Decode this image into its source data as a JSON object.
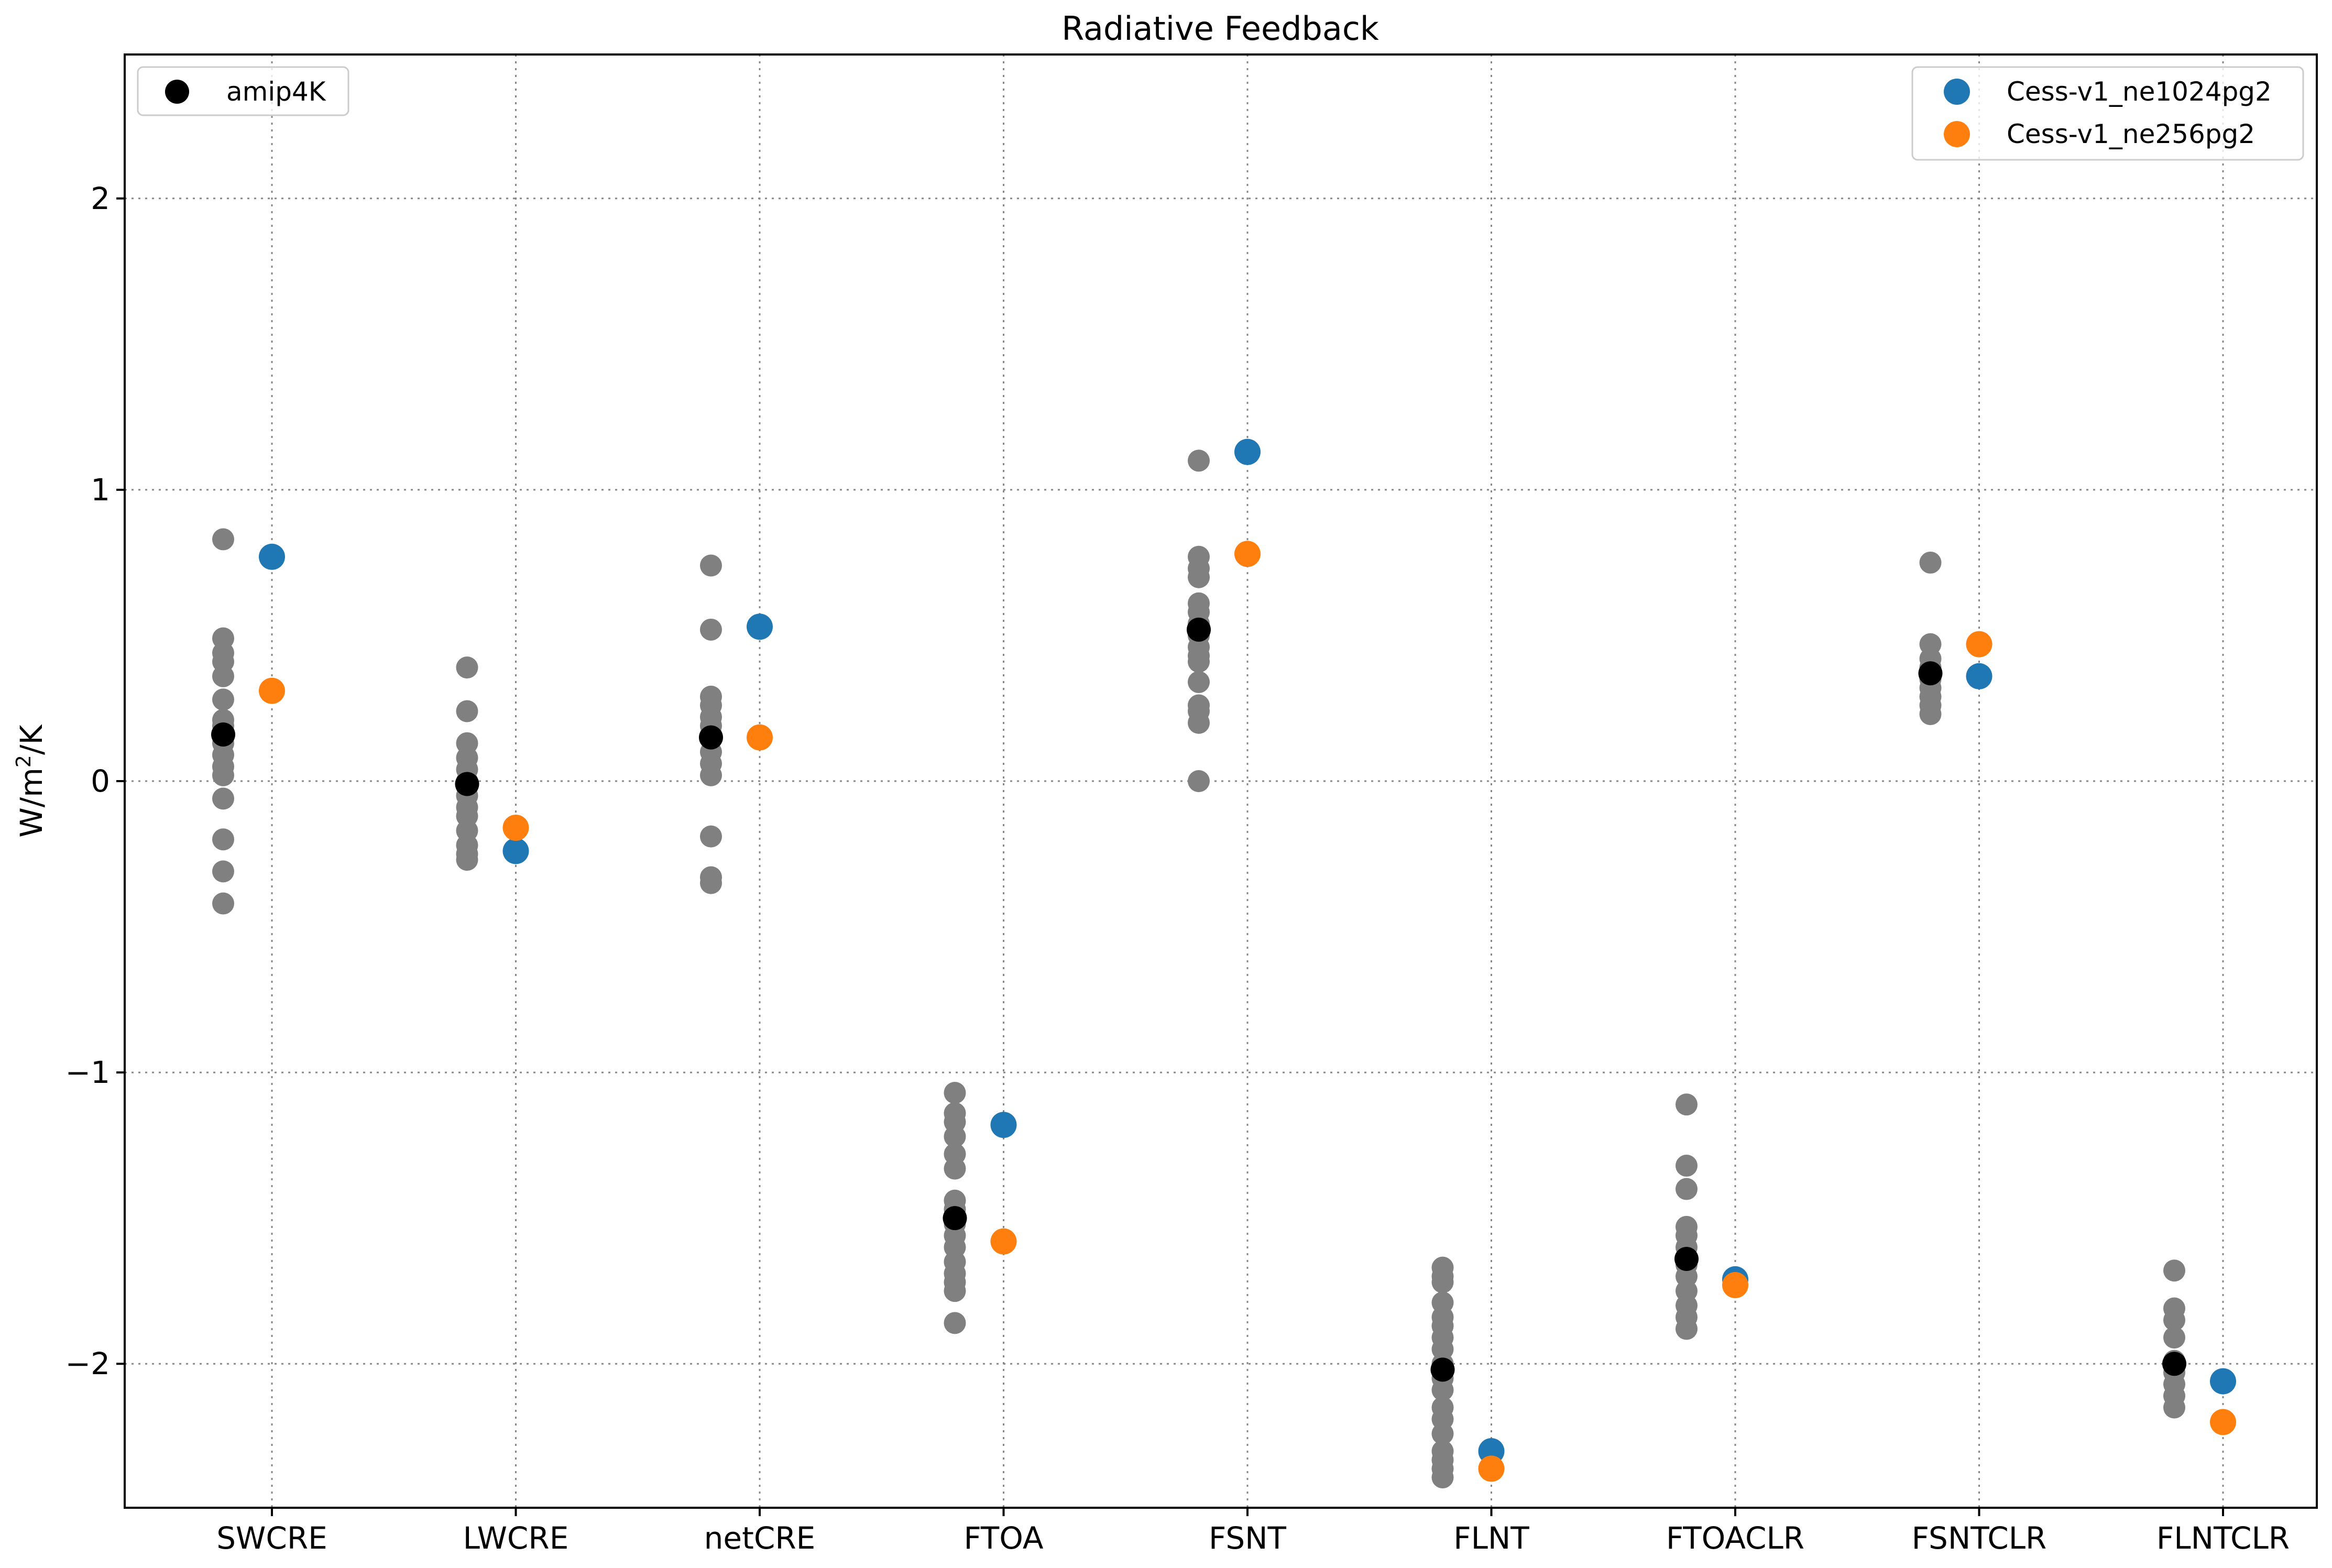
{
  "chart_data": {
    "type": "scatter",
    "title": "Radiative Feedback",
    "ylabel": "W/m²/K",
    "ylabel_base": "W/m",
    "ylabel_sup": "2",
    "ylabel_tail": "/K",
    "xlabel": "",
    "ylim": [
      -2.5,
      2.5
    ],
    "yticks": [
      -2,
      -1,
      0,
      1,
      2
    ],
    "ytick_labels": [
      "−2",
      "−1",
      "0",
      "1",
      "2"
    ],
    "grid": true,
    "categories": [
      "SWCRE",
      "LWCRE",
      "netCRE",
      "FTOA",
      "FSNT",
      "FLNT",
      "FTOACLR",
      "FSNTCLR",
      "FLNTCLR"
    ],
    "ensemble": {
      "color": "#808080",
      "values": [
        [
          0.83,
          0.49,
          0.44,
          0.41,
          0.36,
          0.28,
          0.21,
          0.19,
          0.16,
          0.13,
          0.09,
          0.05,
          0.02,
          -0.06,
          -0.2,
          -0.31,
          -0.42
        ],
        [
          0.39,
          0.24,
          0.13,
          0.08,
          0.04,
          0.0,
          -0.02,
          -0.05,
          -0.09,
          -0.12,
          -0.17,
          -0.22,
          -0.25,
          -0.27
        ],
        [
          0.74,
          0.52,
          0.29,
          0.26,
          0.22,
          0.19,
          0.16,
          0.1,
          0.06,
          0.02,
          -0.19,
          -0.33,
          -0.35
        ],
        [
          -1.07,
          -1.14,
          -1.17,
          -1.22,
          -1.28,
          -1.33,
          -1.44,
          -1.47,
          -1.52,
          -1.56,
          -1.6,
          -1.65,
          -1.69,
          -1.72,
          -1.75,
          -1.86
        ],
        [
          1.1,
          0.77,
          0.73,
          0.7,
          0.61,
          0.58,
          0.54,
          0.5,
          0.46,
          0.43,
          0.41,
          0.34,
          0.26,
          0.24,
          0.2,
          0.0
        ],
        [
          -1.67,
          -1.7,
          -1.72,
          -1.79,
          -1.84,
          -1.87,
          -1.91,
          -1.95,
          -2.0,
          -2.05,
          -2.09,
          -2.15,
          -2.19,
          -2.24,
          -2.3,
          -2.33,
          -2.36,
          -2.39
        ],
        [
          -1.11,
          -1.32,
          -1.4,
          -1.53,
          -1.56,
          -1.6,
          -1.66,
          -1.7,
          -1.75,
          -1.8,
          -1.84,
          -1.88
        ],
        [
          0.75,
          0.47,
          0.42,
          0.39,
          0.35,
          0.32,
          0.29,
          0.26,
          0.23
        ],
        [
          -1.68,
          -1.81,
          -1.85,
          -1.91,
          -1.99,
          -2.03,
          -2.07,
          -2.11,
          -2.15
        ]
      ]
    },
    "series": [
      {
        "name": "amip4K",
        "color": "#000000",
        "offset": -1,
        "values": [
          0.16,
          -0.01,
          0.15,
          -1.5,
          0.52,
          -2.02,
          -1.64,
          0.37,
          -2.0
        ]
      },
      {
        "name": "Cess-v1_ne1024pg2",
        "color": "#1f77b4",
        "offset": 0,
        "values": [
          0.77,
          -0.24,
          0.53,
          -1.18,
          1.13,
          -2.3,
          -1.71,
          0.36,
          -2.06
        ]
      },
      {
        "name": "Cess-v1_ne256pg2",
        "color": "#ff7f0e",
        "offset": 0,
        "values": [
          0.31,
          -0.16,
          0.15,
          -1.58,
          0.78,
          -2.36,
          -1.73,
          0.47,
          -2.2
        ]
      }
    ],
    "legends": [
      {
        "placement": "upper-left",
        "entries": [
          "amip4K"
        ]
      },
      {
        "placement": "upper-right",
        "entries": [
          "Cess-v1_ne1024pg2",
          "Cess-v1_ne256pg2"
        ]
      }
    ]
  }
}
